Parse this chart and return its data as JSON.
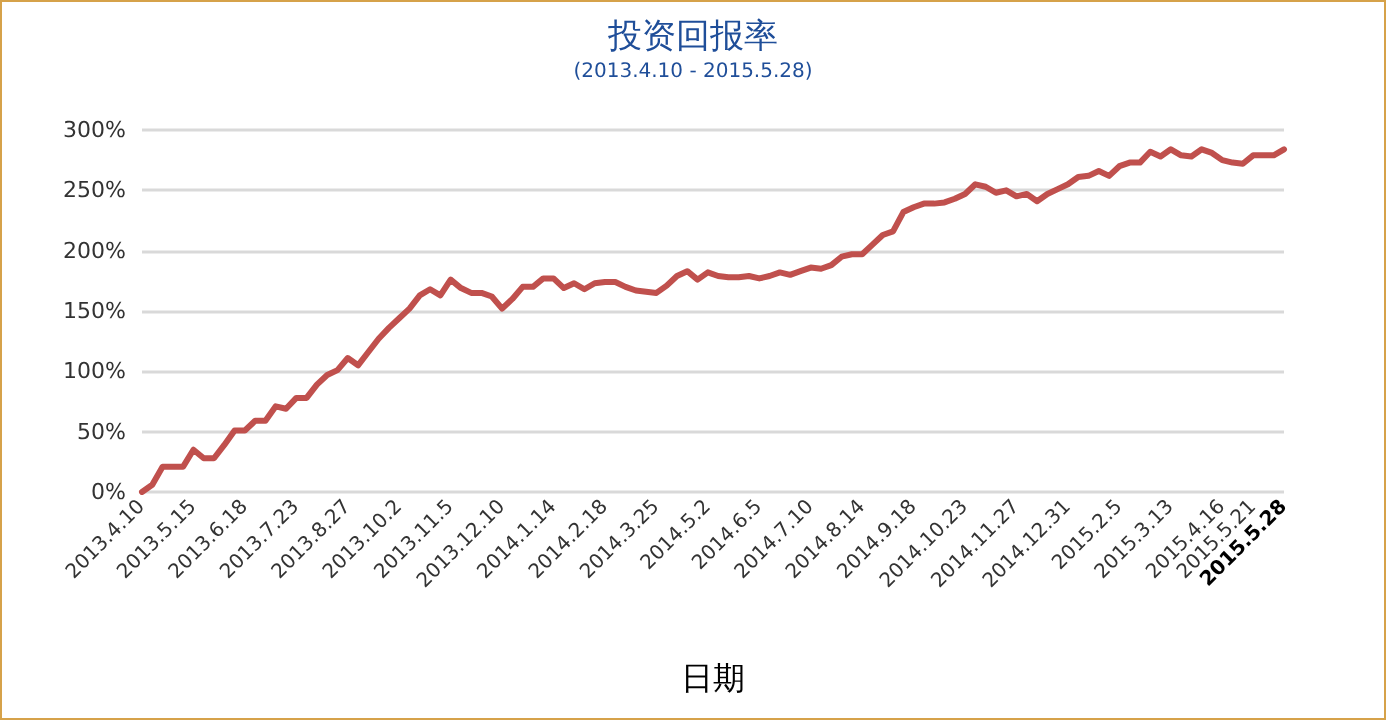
{
  "chart_data": {
    "type": "line",
    "title": "投资回报率",
    "subtitle": "(2013.4.10 - 2015.5.28)",
    "xlabel": "日期",
    "categories": [
      "2013.4.10",
      null,
      null,
      null,
      null,
      "2013.5.15",
      null,
      null,
      null,
      null,
      "2013.6.18",
      null,
      null,
      null,
      null,
      "2013.7.23",
      null,
      null,
      null,
      null,
      "2013.8.27",
      null,
      null,
      null,
      null,
      "2013.10.2",
      null,
      null,
      null,
      null,
      "2013.11.5",
      null,
      null,
      null,
      null,
      "2013.12.10",
      null,
      null,
      null,
      null,
      "2014.1.14",
      null,
      null,
      null,
      null,
      "2014.2.18",
      null,
      null,
      null,
      null,
      "2014.3.25",
      null,
      null,
      null,
      null,
      "2014.5.2",
      null,
      null,
      null,
      null,
      "2014.6.5",
      null,
      null,
      null,
      null,
      "2014.7.10",
      null,
      null,
      null,
      null,
      "2014.8.14",
      null,
      null,
      null,
      null,
      "2014.9.18",
      null,
      null,
      null,
      null,
      "2014.10.23",
      null,
      null,
      null,
      null,
      "2014.11.27",
      null,
      null,
      null,
      null,
      "2014.12.31",
      null,
      null,
      null,
      null,
      "2015.2.5",
      null,
      null,
      null,
      null,
      "2015.3.13",
      null,
      null,
      null,
      null,
      "2015.4.16",
      null,
      null,
      "2015.5.21",
      null,
      null,
      "2015.5.28"
    ],
    "series": [
      {
        "color": "#c0504d",
        "values": [
          0,
          6,
          21,
          21,
          21,
          35,
          28,
          28,
          39,
          51,
          51,
          59,
          59,
          71,
          69,
          78,
          78,
          89,
          97,
          101,
          111,
          105,
          116,
          127,
          136,
          144,
          152,
          163,
          168,
          163,
          176,
          169,
          165,
          165,
          162,
          152,
          160,
          170,
          170,
          177,
          177,
          169,
          173,
          168,
          173,
          174,
          174,
          170,
          167,
          166,
          165,
          171,
          179,
          183,
          176,
          182,
          179,
          178,
          178,
          179,
          177,
          179,
          182,
          180,
          183,
          186,
          185,
          188,
          195,
          197,
          197,
          205,
          213,
          216,
          232,
          236,
          239,
          239,
          240,
          243,
          247,
          255,
          253,
          248,
          250,
          245,
          247,
          241,
          247,
          251,
          255,
          261,
          262,
          266,
          262,
          270,
          273,
          273,
          282,
          278,
          284,
          279,
          278,
          284,
          281,
          275,
          273,
          272,
          279,
          279,
          279,
          284
        ]
      }
    ],
    "ylim": [
      0,
      300
    ],
    "yticks": [
      {
        "value": 0,
        "label": "0%"
      },
      {
        "value": 50,
        "label": "50%"
      },
      {
        "value": 100,
        "label": "100%"
      },
      {
        "value": 150,
        "label": "150%"
      },
      {
        "value": 200,
        "label": "200%"
      },
      {
        "value": 250,
        "label": "250%"
      },
      {
        "value": 300,
        "label": "300%"
      }
    ],
    "grid": "y",
    "marker": "none",
    "line_style": "solid"
  }
}
